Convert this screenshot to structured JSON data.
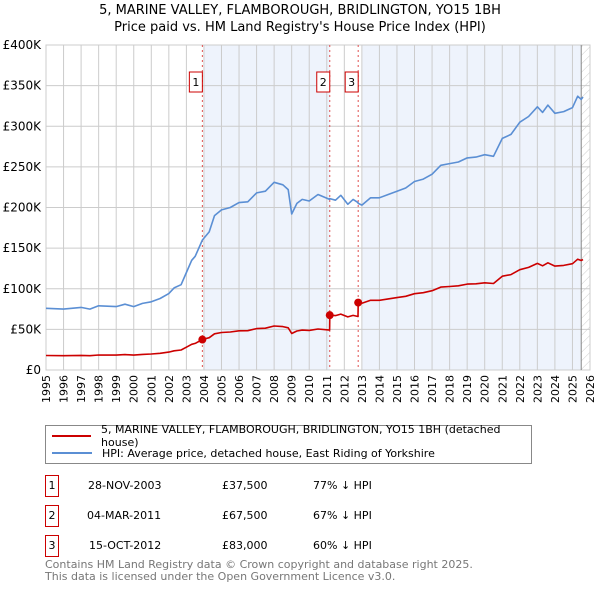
{
  "chart_data": {
    "type": "line",
    "title": "5, MARINE VALLEY, FLAMBOROUGH, BRIDLINGTON, YO15 1BH",
    "subtitle": "Price paid vs. HM Land Registry's House Price Index (HPI)",
    "xlim": [
      1995,
      2026
    ],
    "ylim": [
      0,
      400000
    ],
    "x_ticks": [
      "1995",
      "1996",
      "1997",
      "1998",
      "1999",
      "2000",
      "2001",
      "2002",
      "2003",
      "2004",
      "2005",
      "2006",
      "2007",
      "2008",
      "2009",
      "2010",
      "2011",
      "2012",
      "2013",
      "2014",
      "2015",
      "2016",
      "2017",
      "2018",
      "2019",
      "2020",
      "2021",
      "2022",
      "2023",
      "2024",
      "2025",
      "2026"
    ],
    "y_ticks": [
      {
        "value": 0,
        "label": "£0"
      },
      {
        "value": 50000,
        "label": "£50K"
      },
      {
        "value": 100000,
        "label": "£100K"
      },
      {
        "value": 150000,
        "label": "£150K"
      },
      {
        "value": 200000,
        "label": "£200K"
      },
      {
        "value": 250000,
        "label": "£250K"
      },
      {
        "value": 300000,
        "label": "£300K"
      },
      {
        "value": 350000,
        "label": "£350K"
      },
      {
        "value": 400000,
        "label": "£400K"
      }
    ],
    "grid": true,
    "x": [
      1995,
      1996,
      1997,
      1997.5,
      1998,
      1999,
      1999.5,
      2000,
      2000.5,
      2001,
      2001.5,
      2002,
      2002.3,
      2002.7,
      2003,
      2003.3,
      2003.5,
      2003.91,
      2004.3,
      2004.6,
      2005,
      2005.5,
      2006,
      2006.5,
      2007,
      2007.5,
      2008,
      2008.5,
      2008.8,
      2009.0,
      2009.3,
      2009.6,
      2010,
      2010.5,
      2011.16,
      2011.17,
      2011.5,
      2011.8,
      2012.2,
      2012.5,
      2012.78,
      2012.79,
      2013,
      2013.5,
      2014,
      2014.5,
      2015,
      2015.5,
      2016,
      2016.5,
      2017,
      2017.5,
      2018,
      2018.5,
      2019,
      2019.5,
      2020,
      2020.5,
      2021,
      2021.5,
      2022,
      2022.5,
      2023,
      2023.3,
      2023.6,
      2024,
      2024.5,
      2025,
      2025.3,
      2025.5,
      2025.6
    ],
    "series": [
      {
        "name": "5, MARINE VALLEY, FLAMBOROUGH, BRIDLINGTON, YO15 1BH (detached house)",
        "color": "#cc0000",
        "values": [
          17800,
          17600,
          18000,
          17600,
          18500,
          18300,
          19000,
          18300,
          19200,
          19700,
          20600,
          22000,
          23600,
          24600,
          28100,
          31600,
          32800,
          37500,
          39800,
          44500,
          46100,
          46800,
          48200,
          48400,
          51000,
          51500,
          54100,
          53400,
          52000,
          44900,
          48000,
          49100,
          48700,
          50500,
          49100,
          67500,
          66900,
          68800,
          65300,
          67200,
          65900,
          83000,
          82200,
          85800,
          85800,
          87500,
          89100,
          90700,
          93900,
          95100,
          97600,
          102000,
          102800,
          103600,
          105700,
          106100,
          107300,
          106500,
          115400,
          117400,
          123500,
          126300,
          131200,
          128300,
          132000,
          127900,
          128700,
          130800,
          136400,
          134800,
          136000
        ]
      },
      {
        "name": "HPI: Average price, detached house, East Riding of Yorkshire",
        "color": "#5b8fd4",
        "values": [
          76000,
          75000,
          77000,
          75000,
          79000,
          78000,
          81000,
          78000,
          82000,
          84000,
          88000,
          94000,
          101000,
          105000,
          120000,
          135000,
          140000,
          160000,
          170000,
          190000,
          197000,
          200000,
          206000,
          207000,
          218000,
          220000,
          231000,
          228000,
          222000,
          192000,
          205000,
          210000,
          208000,
          216000,
          210000,
          211000,
          209000,
          215000,
          204000,
          210000,
          206000,
          205000,
          203000,
          212000,
          212000,
          216000,
          220000,
          224000,
          232000,
          235000,
          241000,
          252000,
          254000,
          256000,
          261000,
          262000,
          265000,
          263000,
          285000,
          290000,
          305000,
          312000,
          324000,
          317000,
          326000,
          316000,
          318000,
          323000,
          337000,
          333000,
          336000
        ]
      }
    ],
    "sales": [
      {
        "label": "1",
        "x": 2003.91,
        "date": "28-NOV-2003",
        "price": 37500,
        "price_text": "£37,500",
        "hpi_text": "77% ↓ HPI"
      },
      {
        "label": "2",
        "x": 2011.17,
        "date": "04-MAR-2011",
        "price": 67500,
        "price_text": "£67,500",
        "hpi_text": "67% ↓ HPI"
      },
      {
        "label": "3",
        "x": 2012.79,
        "date": "15-OCT-2012",
        "price": 83000,
        "price_text": "£83,000",
        "hpi_text": "60% ↓ HPI"
      }
    ],
    "hatch_from": 2025.5,
    "legend_position": "below"
  },
  "footer": {
    "line1": "Contains HM Land Registry data © Crown copyright and database right 2025.",
    "line2": "This data is licensed under the Open Government Licence v3.0."
  }
}
